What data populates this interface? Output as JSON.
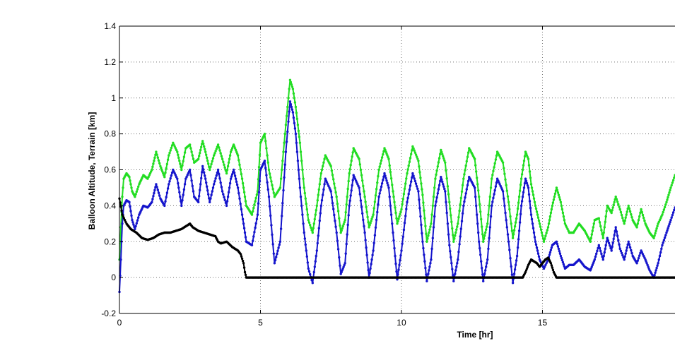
{
  "chart_data": {
    "type": "line",
    "title": "",
    "xlabel": "Time [hr]",
    "ylabel": "Balloon Altitude, Terrain [km]",
    "xlim": [
      0,
      19.7
    ],
    "ylim": [
      -0.2,
      1.4
    ],
    "xticks": [
      0,
      5,
      10,
      15
    ],
    "yticks": [
      -0.2,
      0,
      0.2,
      0.4,
      0.6,
      0.8,
      1,
      1.2,
      1.4
    ],
    "xtick_labels": [
      "0",
      "5",
      "10",
      "15"
    ],
    "ytick_labels": [
      "-0.2",
      "0",
      "0.2",
      "0.4",
      "0.6",
      "0.8",
      "1",
      "1.2",
      "1.4"
    ],
    "grid": true,
    "legend": "none",
    "series": [
      {
        "color": "#22dd22",
        "x": [
          0.0,
          0.05,
          0.1,
          0.15,
          0.25,
          0.35,
          0.45,
          0.55,
          0.7,
          0.85,
          1.0,
          1.15,
          1.3,
          1.45,
          1.6,
          1.75,
          1.9,
          2.05,
          2.2,
          2.35,
          2.5,
          2.65,
          2.8,
          2.95,
          3.05,
          3.2,
          3.35,
          3.5,
          3.65,
          3.8,
          3.95,
          4.05,
          4.2,
          4.35,
          4.5,
          4.7,
          4.9,
          5.0,
          5.15,
          5.3,
          5.5,
          5.7,
          5.9,
          6.05,
          6.15,
          6.25,
          6.4,
          6.55,
          6.7,
          6.85,
          7.0,
          7.15,
          7.3,
          7.5,
          7.7,
          7.85,
          8.0,
          8.15,
          8.3,
          8.5,
          8.7,
          8.85,
          9.0,
          9.2,
          9.4,
          9.55,
          9.7,
          9.85,
          10.0,
          10.2,
          10.4,
          10.6,
          10.75,
          10.9,
          11.05,
          11.2,
          11.4,
          11.55,
          11.7,
          11.85,
          12.0,
          12.2,
          12.4,
          12.6,
          12.75,
          12.9,
          13.05,
          13.2,
          13.4,
          13.6,
          13.8,
          13.95,
          14.1,
          14.25,
          14.4,
          14.5,
          14.6,
          14.75,
          14.9,
          15.05,
          15.2,
          15.35,
          15.5,
          15.65,
          15.8,
          15.95,
          16.1,
          16.3,
          16.5,
          16.7,
          16.85,
          17.0,
          17.15,
          17.3,
          17.45,
          17.6,
          17.75,
          17.9,
          18.05,
          18.2,
          18.35,
          18.5,
          18.65,
          18.8,
          18.95,
          19.1,
          19.25,
          19.4,
          19.55,
          19.7
        ],
        "y": [
          0.1,
          0.28,
          0.45,
          0.55,
          0.58,
          0.56,
          0.48,
          0.45,
          0.52,
          0.57,
          0.55,
          0.6,
          0.7,
          0.62,
          0.56,
          0.68,
          0.75,
          0.7,
          0.6,
          0.72,
          0.74,
          0.64,
          0.66,
          0.76,
          0.7,
          0.6,
          0.68,
          0.74,
          0.66,
          0.58,
          0.7,
          0.74,
          0.68,
          0.55,
          0.4,
          0.35,
          0.48,
          0.75,
          0.8,
          0.6,
          0.45,
          0.5,
          0.85,
          1.1,
          1.05,
          0.95,
          0.75,
          0.5,
          0.32,
          0.25,
          0.4,
          0.58,
          0.68,
          0.62,
          0.45,
          0.25,
          0.32,
          0.58,
          0.72,
          0.66,
          0.45,
          0.28,
          0.35,
          0.6,
          0.72,
          0.66,
          0.48,
          0.3,
          0.38,
          0.58,
          0.73,
          0.65,
          0.46,
          0.2,
          0.3,
          0.55,
          0.71,
          0.64,
          0.42,
          0.2,
          0.3,
          0.55,
          0.72,
          0.66,
          0.45,
          0.2,
          0.3,
          0.55,
          0.7,
          0.64,
          0.42,
          0.22,
          0.35,
          0.55,
          0.7,
          0.66,
          0.52,
          0.4,
          0.3,
          0.2,
          0.28,
          0.4,
          0.5,
          0.42,
          0.3,
          0.25,
          0.25,
          0.3,
          0.26,
          0.2,
          0.32,
          0.33,
          0.22,
          0.4,
          0.36,
          0.45,
          0.38,
          0.3,
          0.4,
          0.32,
          0.28,
          0.38,
          0.3,
          0.25,
          0.22,
          0.3,
          0.35,
          0.42,
          0.5,
          0.57
        ]
      },
      {
        "color": "#1515cc",
        "x": [
          0.0,
          0.05,
          0.1,
          0.15,
          0.25,
          0.35,
          0.45,
          0.55,
          0.7,
          0.85,
          1.0,
          1.15,
          1.3,
          1.45,
          1.6,
          1.75,
          1.9,
          2.05,
          2.2,
          2.35,
          2.5,
          2.65,
          2.8,
          2.95,
          3.05,
          3.2,
          3.35,
          3.5,
          3.65,
          3.8,
          3.95,
          4.05,
          4.2,
          4.35,
          4.5,
          4.7,
          4.9,
          5.0,
          5.15,
          5.3,
          5.5,
          5.7,
          5.9,
          6.05,
          6.15,
          6.25,
          6.4,
          6.55,
          6.7,
          6.85,
          7.0,
          7.15,
          7.3,
          7.5,
          7.7,
          7.85,
          8.0,
          8.15,
          8.3,
          8.5,
          8.7,
          8.85,
          9.0,
          9.2,
          9.4,
          9.55,
          9.7,
          9.85,
          10.0,
          10.2,
          10.4,
          10.6,
          10.75,
          10.9,
          11.05,
          11.2,
          11.4,
          11.55,
          11.7,
          11.85,
          12.0,
          12.2,
          12.4,
          12.6,
          12.75,
          12.9,
          13.05,
          13.2,
          13.4,
          13.6,
          13.8,
          13.95,
          14.1,
          14.25,
          14.4,
          14.5,
          14.6,
          14.75,
          14.9,
          15.05,
          15.2,
          15.35,
          15.5,
          15.65,
          15.8,
          15.95,
          16.1,
          16.3,
          16.5,
          16.7,
          16.85,
          17.0,
          17.15,
          17.3,
          17.45,
          17.6,
          17.75,
          17.9,
          18.05,
          18.2,
          18.35,
          18.5,
          18.65,
          18.8,
          18.95,
          19.1,
          19.25,
          19.4,
          19.55,
          19.7
        ],
        "y": [
          -0.08,
          0.1,
          0.3,
          0.4,
          0.43,
          0.42,
          0.32,
          0.27,
          0.35,
          0.4,
          0.39,
          0.42,
          0.52,
          0.44,
          0.4,
          0.52,
          0.6,
          0.55,
          0.4,
          0.55,
          0.6,
          0.45,
          0.42,
          0.62,
          0.55,
          0.42,
          0.52,
          0.6,
          0.48,
          0.4,
          0.55,
          0.6,
          0.5,
          0.35,
          0.2,
          0.18,
          0.35,
          0.6,
          0.65,
          0.45,
          0.08,
          0.2,
          0.7,
          0.98,
          0.92,
          0.8,
          0.5,
          0.25,
          0.05,
          -0.03,
          0.15,
          0.4,
          0.55,
          0.48,
          0.25,
          0.02,
          0.08,
          0.4,
          0.57,
          0.5,
          0.25,
          0.0,
          0.15,
          0.45,
          0.58,
          0.5,
          0.25,
          -0.01,
          0.15,
          0.42,
          0.58,
          0.48,
          0.2,
          -0.02,
          0.1,
          0.4,
          0.56,
          0.48,
          0.18,
          -0.02,
          0.1,
          0.4,
          0.56,
          0.5,
          0.2,
          -0.02,
          0.1,
          0.4,
          0.55,
          0.48,
          0.2,
          -0.03,
          0.12,
          0.4,
          0.55,
          0.5,
          0.35,
          0.2,
          0.1,
          0.05,
          0.1,
          0.18,
          0.2,
          0.12,
          0.05,
          0.07,
          0.07,
          0.1,
          0.06,
          0.04,
          0.1,
          0.18,
          0.1,
          0.22,
          0.15,
          0.28,
          0.16,
          0.1,
          0.2,
          0.12,
          0.08,
          0.15,
          0.1,
          0.04,
          0.0,
          0.08,
          0.18,
          0.25,
          0.32,
          0.39
        ]
      },
      {
        "color": "#000000",
        "x": [
          0.0,
          0.1,
          0.25,
          0.4,
          0.6,
          0.8,
          1.0,
          1.2,
          1.4,
          1.6,
          1.8,
          2.0,
          2.2,
          2.4,
          2.5,
          2.6,
          2.8,
          3.0,
          3.2,
          3.4,
          3.5,
          3.6,
          3.8,
          4.0,
          4.2,
          4.3,
          4.4,
          4.45,
          4.5,
          5.0,
          6.0,
          7.0,
          8.0,
          9.0,
          10.0,
          11.0,
          12.0,
          13.0,
          14.0,
          14.3,
          14.4,
          14.5,
          14.6,
          14.7,
          14.8,
          14.9,
          15.0,
          15.1,
          15.2,
          15.3,
          15.4,
          15.5,
          15.6,
          16.0,
          17.0,
          18.0,
          19.0,
          19.7
        ],
        "y": [
          0.44,
          0.35,
          0.3,
          0.27,
          0.25,
          0.22,
          0.21,
          0.22,
          0.24,
          0.25,
          0.25,
          0.26,
          0.27,
          0.29,
          0.3,
          0.28,
          0.26,
          0.25,
          0.24,
          0.23,
          0.2,
          0.19,
          0.2,
          0.17,
          0.15,
          0.13,
          0.08,
          0.03,
          0.0,
          0.0,
          0.0,
          0.0,
          0.0,
          0.0,
          0.0,
          0.0,
          0.0,
          0.0,
          0.0,
          0.0,
          0.03,
          0.07,
          0.1,
          0.09,
          0.08,
          0.06,
          0.08,
          0.1,
          0.11,
          0.08,
          0.03,
          0.0,
          0.0,
          0.0,
          0.0,
          0.0,
          0.0,
          0.0
        ]
      }
    ]
  }
}
